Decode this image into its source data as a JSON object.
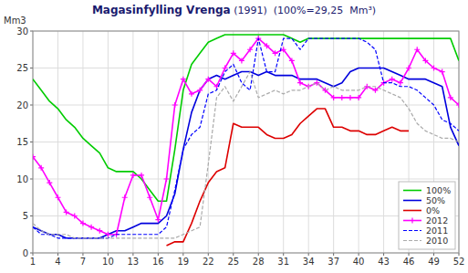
{
  "chart_data": {
    "type": "line",
    "title": "Magasinfylling Vrenga",
    "subtitle": " (1991)  (100%=29,25  Mm³)",
    "y_label": "Mm3",
    "x": [
      1,
      2,
      3,
      4,
      5,
      6,
      7,
      8,
      9,
      10,
      11,
      12,
      13,
      14,
      15,
      16,
      17,
      18,
      19,
      20,
      21,
      22,
      23,
      24,
      25,
      26,
      27,
      28,
      29,
      30,
      31,
      32,
      33,
      34,
      35,
      36,
      37,
      38,
      39,
      40,
      41,
      42,
      43,
      44,
      45,
      46,
      47,
      48,
      49,
      50,
      51,
      52
    ],
    "xlim": [
      1,
      52
    ],
    "ylim": [
      0,
      30
    ],
    "xticks": [
      1,
      4,
      7,
      10,
      13,
      16,
      19,
      22,
      25,
      28,
      31,
      34,
      37,
      40,
      43,
      46,
      49,
      52
    ],
    "yticks": [
      0,
      5,
      10,
      15,
      20,
      25,
      30
    ],
    "grid": true,
    "legend": "lower right",
    "series": [
      {
        "name": "100%",
        "color": "#00cc00",
        "line_style": "solid",
        "values": [
          23.5,
          22.0,
          20.5,
          19.5,
          18.0,
          17.0,
          15.5,
          14.5,
          13.5,
          11.5,
          11.0,
          11.0,
          11.0,
          10.0,
          8.5,
          7.0,
          7.0,
          14.0,
          22.0,
          25.5,
          27.0,
          28.5,
          29.0,
          29.5,
          29.5,
          29.5,
          29.5,
          29.5,
          29.5,
          29.5,
          29.5,
          29.0,
          28.5,
          29.0,
          29.0,
          29.0,
          29.0,
          29.0,
          29.0,
          29.0,
          29.0,
          29.0,
          29.0,
          29.0,
          29.0,
          29.0,
          29.0,
          29.0,
          29.0,
          29.0,
          29.0,
          26.0
        ]
      },
      {
        "name": "50%",
        "color": "#0000dd",
        "line_style": "solid",
        "values": [
          3.5,
          3.0,
          2.5,
          2.5,
          2.0,
          2.0,
          2.0,
          2.0,
          2.0,
          2.5,
          3.0,
          3.0,
          3.5,
          4.0,
          4.0,
          4.0,
          5.0,
          8.0,
          14.0,
          19.0,
          22.0,
          23.5,
          24.0,
          23.5,
          24.0,
          24.5,
          24.5,
          24.0,
          24.5,
          24.0,
          24.0,
          24.0,
          23.5,
          23.5,
          23.5,
          23.0,
          22.5,
          23.0,
          24.5,
          25.0,
          25.0,
          25.0,
          25.0,
          24.5,
          24.0,
          23.5,
          23.5,
          23.5,
          23.0,
          22.5,
          17.0,
          14.5
        ]
      },
      {
        "name": "0%",
        "color": "#dd0000",
        "line_style": "solid",
        "values": [
          null,
          null,
          null,
          null,
          null,
          null,
          null,
          null,
          null,
          null,
          null,
          null,
          null,
          null,
          null,
          null,
          1.0,
          1.5,
          1.5,
          4.0,
          7.0,
          9.5,
          11.0,
          11.5,
          17.5,
          17.0,
          17.0,
          17.0,
          16.0,
          15.5,
          15.5,
          16.0,
          17.5,
          18.5,
          19.5,
          19.5,
          17.0,
          17.0,
          16.5,
          16.5,
          16.0,
          16.0,
          16.5,
          17.0,
          16.5,
          16.5,
          null,
          null,
          null,
          null,
          null,
          null
        ]
      },
      {
        "name": "2012",
        "color": "#ff00ff",
        "line_style": "solid",
        "marker": "plus",
        "values": [
          13.0,
          11.5,
          9.5,
          7.5,
          5.5,
          5.0,
          4.0,
          3.5,
          3.0,
          2.5,
          2.5,
          7.5,
          10.5,
          10.5,
          7.5,
          4.5,
          10.0,
          20.0,
          23.5,
          21.5,
          22.0,
          23.5,
          22.5,
          25.0,
          27.0,
          26.0,
          27.5,
          29.0,
          28.0,
          27.0,
          27.5,
          26.0,
          23.0,
          22.5,
          23.0,
          22.0,
          21.0,
          21.0,
          21.0,
          21.0,
          22.5,
          22.0,
          23.0,
          23.5,
          23.0,
          25.0,
          27.5,
          26.0,
          25.0,
          24.5,
          21.0,
          20.0
        ]
      },
      {
        "name": "2011",
        "color": "#0000ff",
        "line_style": "dashed",
        "values": [
          3.5,
          2.5,
          2.5,
          2.0,
          2.0,
          2.0,
          2.0,
          2.0,
          2.0,
          2.0,
          2.5,
          2.5,
          2.5,
          2.5,
          2.5,
          2.5,
          3.5,
          8.5,
          14.0,
          16.0,
          17.0,
          21.5,
          22.0,
          24.5,
          25.5,
          23.0,
          22.0,
          29.0,
          24.5,
          24.5,
          29.0,
          29.0,
          27.5,
          29.0,
          29.0,
          29.0,
          29.0,
          29.0,
          29.0,
          29.0,
          28.5,
          27.5,
          23.0,
          23.0,
          22.5,
          22.5,
          22.0,
          21.0,
          20.0,
          18.0,
          17.5,
          16.5
        ]
      },
      {
        "name": "2010",
        "color": "#aaaaaa",
        "line_style": "dashed",
        "values": [
          4.0,
          3.0,
          2.5,
          2.5,
          2.5,
          2.0,
          2.0,
          2.0,
          2.0,
          2.0,
          2.0,
          2.0,
          2.0,
          2.0,
          2.0,
          2.0,
          2.0,
          2.0,
          2.5,
          3.0,
          3.5,
          12.0,
          21.0,
          22.5,
          20.5,
          22.5,
          24.5,
          21.0,
          21.5,
          22.0,
          21.5,
          22.0,
          22.0,
          22.5,
          23.0,
          22.0,
          22.5,
          22.0,
          22.0,
          22.0,
          22.5,
          22.5,
          22.0,
          21.5,
          21.0,
          19.5,
          17.5,
          16.5,
          16.0,
          15.5,
          15.5,
          15.0
        ]
      }
    ]
  }
}
